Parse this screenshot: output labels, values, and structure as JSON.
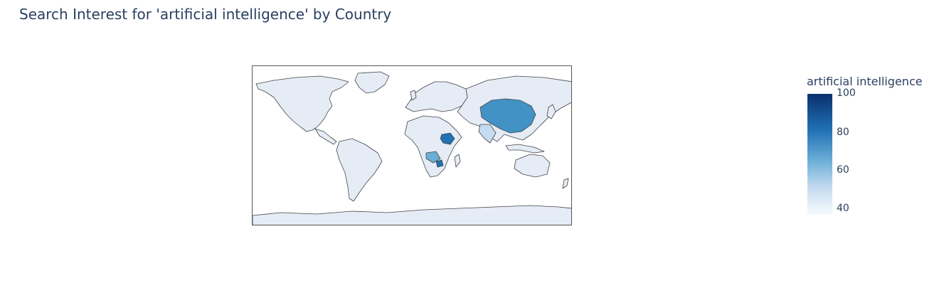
{
  "title": "Search Interest for 'artificial intelligence' by Country",
  "colorbar": {
    "title": "artificial intelligence",
    "range": [
      35,
      100
    ],
    "ticks": [
      "100",
      "80",
      "60",
      "40"
    ],
    "tick_values": [
      100,
      80,
      60,
      40
    ],
    "colorscale": [
      "#f7fbff",
      "#c6dbef",
      "#6baed6",
      "#2171b5",
      "#08306b"
    ]
  },
  "map": {
    "projection": "equirectangular",
    "land_color": "#e5ecf6",
    "border_color": "#444444",
    "highlighted_countries": [
      {
        "name": "China",
        "value": 75
      },
      {
        "name": "Ethiopia",
        "value": 95
      },
      {
        "name": "Zambia",
        "value": 65
      },
      {
        "name": "Zimbabwe",
        "value": 85
      },
      {
        "name": "India",
        "value": 45
      }
    ]
  }
}
